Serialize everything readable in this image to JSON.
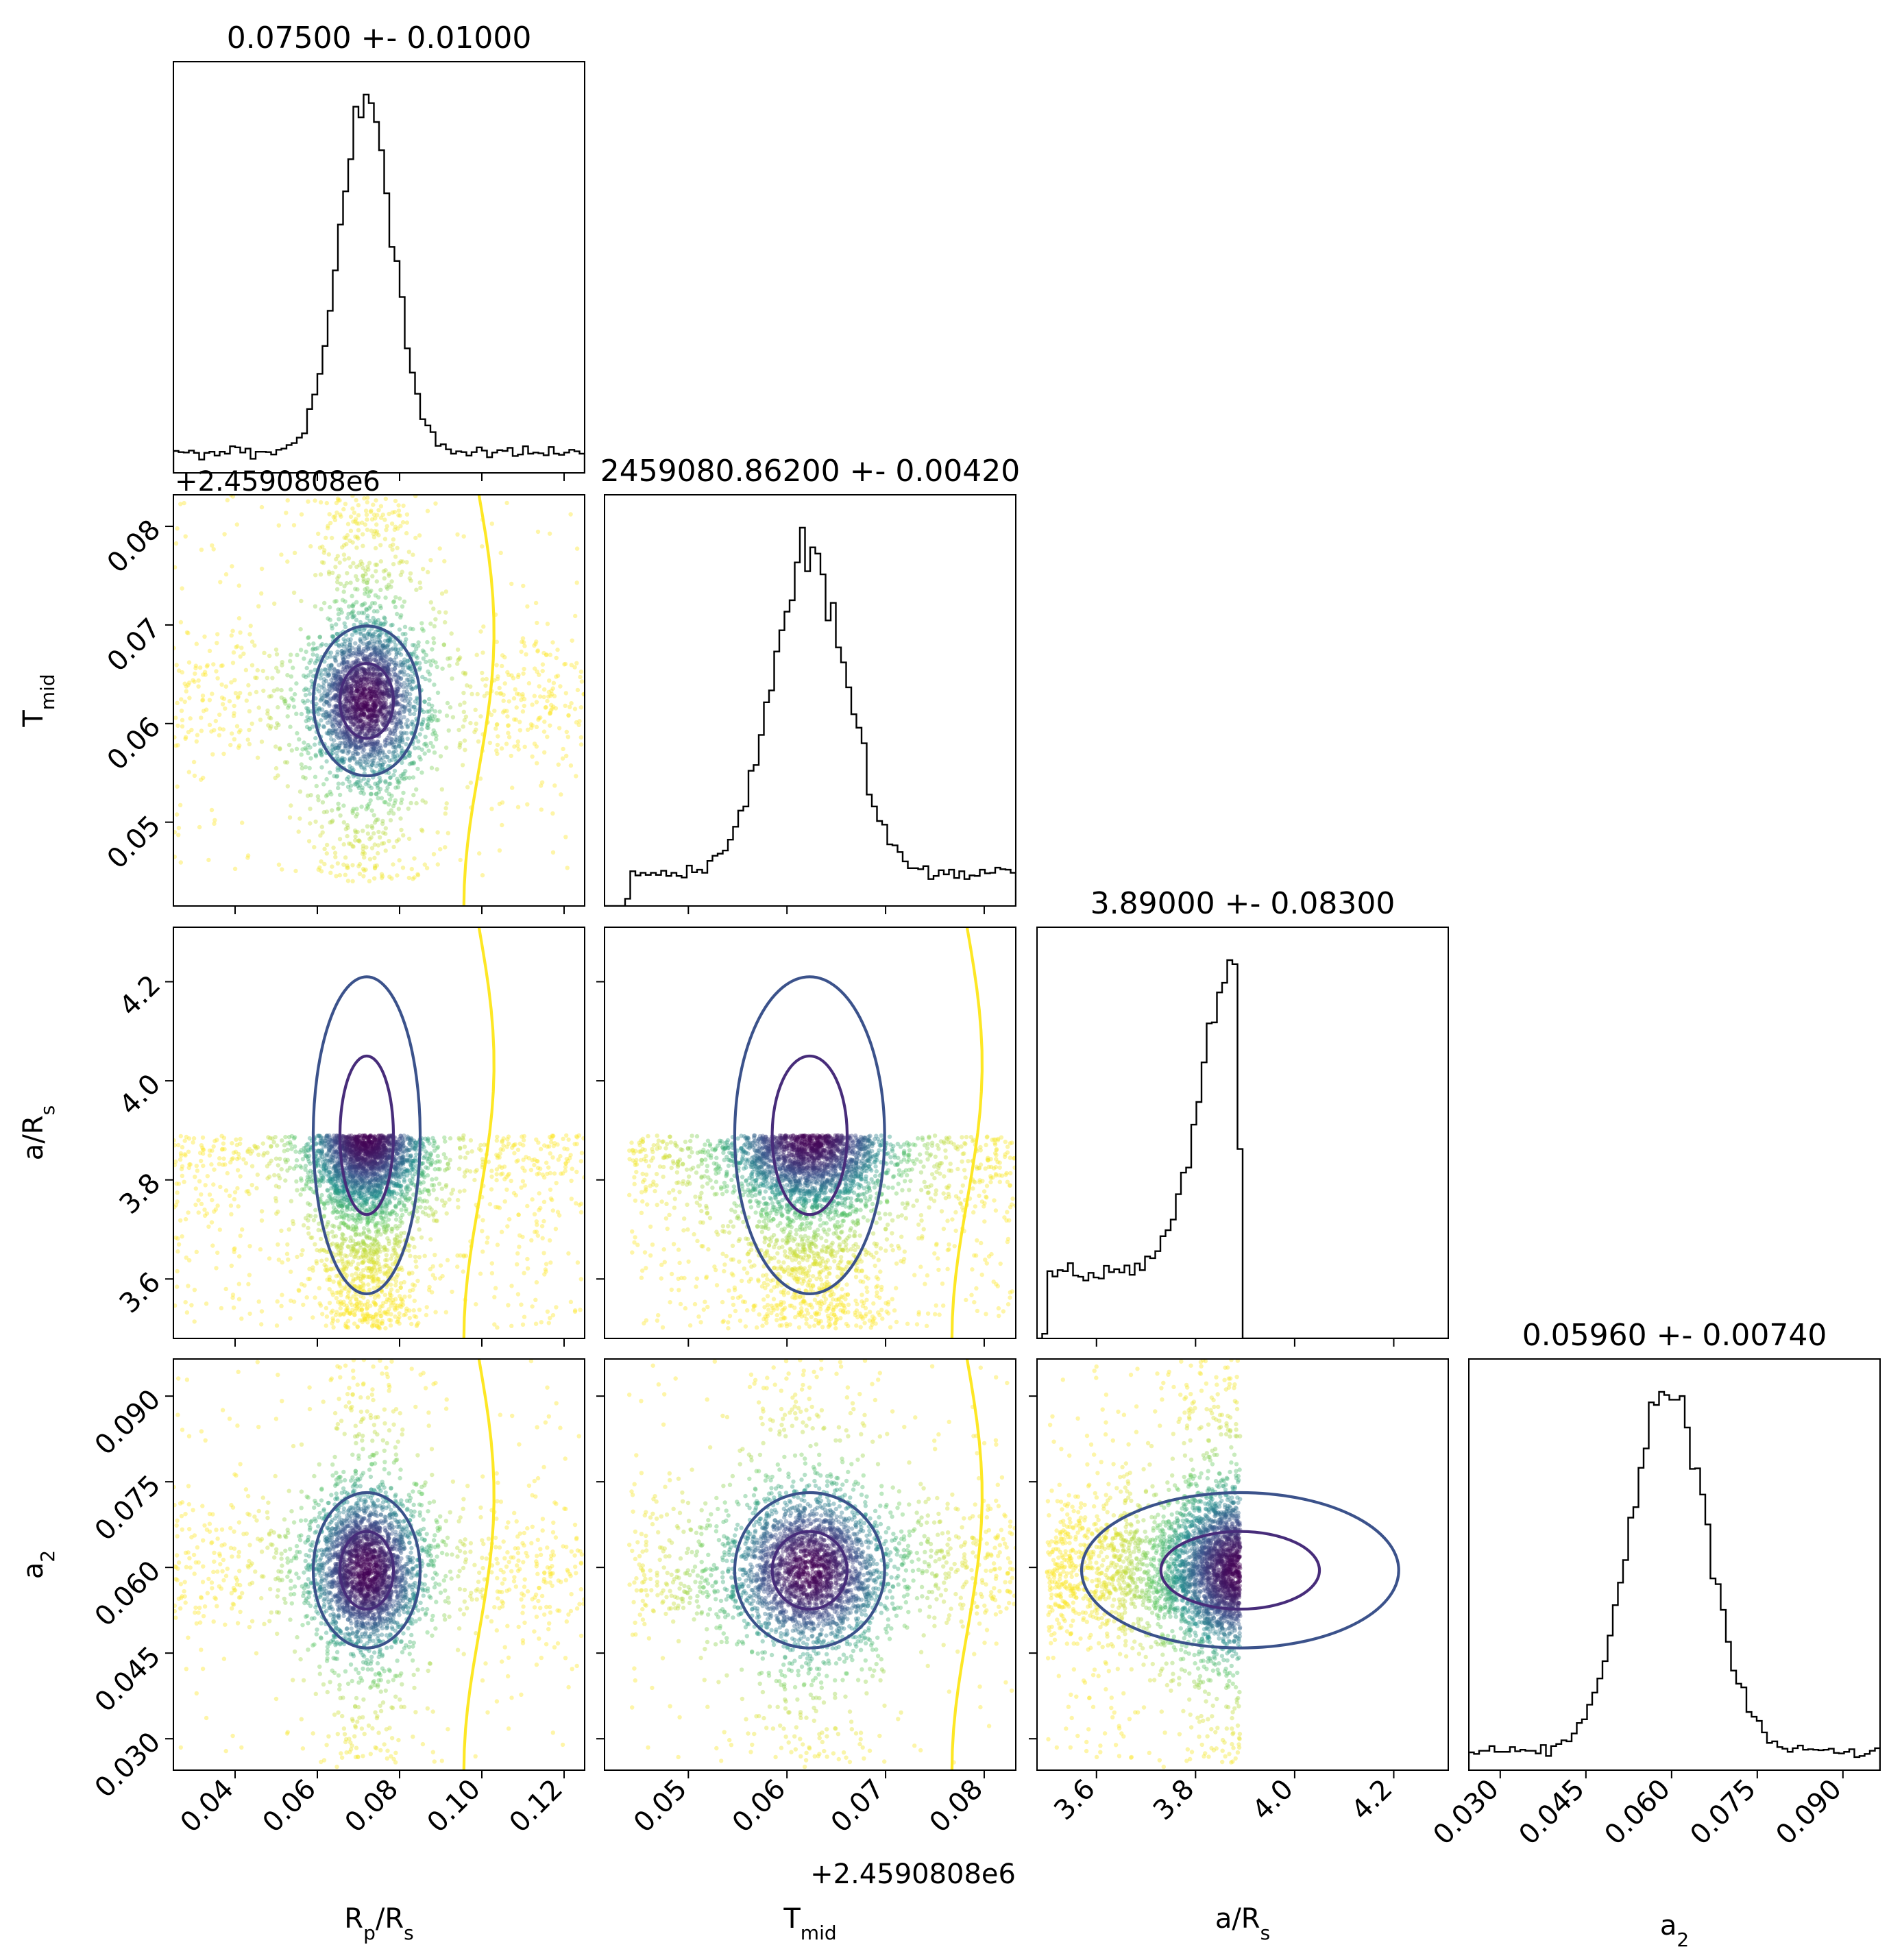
{
  "chart_data": {
    "type": "scatter",
    "subtype": "corner",
    "parameters": [
      {
        "key": "rp",
        "label_main": "R",
        "label_sub": "p",
        "label_tail": "/R",
        "label_tail_sub": "s",
        "range": [
          0.025,
          0.125
        ],
        "ticks": [
          0.04,
          0.06,
          0.08,
          0.1,
          0.12
        ],
        "tick_labels": [
          "0.04",
          "0.06",
          "0.08",
          "0.10",
          "0.12"
        ],
        "title": "0.07500 +- 0.01000",
        "offset_label": ""
      },
      {
        "key": "tmid",
        "label_main": "T",
        "label_sub": "mid",
        "label_tail": "",
        "label_tail_sub": "",
        "range": [
          0.0415,
          0.0832
        ],
        "ticks": [
          0.05,
          0.06,
          0.07,
          0.08
        ],
        "tick_labels": [
          "0.05",
          "0.06",
          "0.07",
          "0.08"
        ],
        "title": "2459080.86200 +- 0.00420",
        "offset_label": "+2.4590808e6"
      },
      {
        "key": "ars",
        "label_main": "a/R",
        "label_sub": "s",
        "label_tail": "",
        "label_tail_sub": "",
        "range": [
          3.48,
          4.31
        ],
        "ticks": [
          3.6,
          3.8,
          4.0,
          4.2
        ],
        "tick_labels": [
          "3.6",
          "3.8",
          "4.0",
          "4.2"
        ],
        "title": "3.89000 +- 0.08300",
        "offset_label": ""
      },
      {
        "key": "a2",
        "label_main": "a",
        "label_sub": "2",
        "label_tail": "",
        "label_tail_sub": "",
        "range": [
          0.0245,
          0.0965
        ],
        "ticks": [
          0.03,
          0.045,
          0.06,
          0.075,
          0.09
        ],
        "tick_labels": [
          "0.030",
          "0.045",
          "0.060",
          "0.075",
          "0.090"
        ],
        "title": "0.05960 +- 0.00740",
        "offset_label": ""
      }
    ],
    "posterior": {
      "rp": {
        "center": 0.072,
        "core_sigma": 0.0065,
        "tail_fraction": 0.26,
        "tail_range": [
          0.025,
          0.125
        ]
      },
      "tmid": {
        "center": 0.0623,
        "core_sigma": 0.0038,
        "tail_fraction": 0.3,
        "tail_range": [
          0.044,
          0.0832
        ]
      },
      "ars": {
        "peak": 3.89,
        "lower_bound": 3.5,
        "upper_cut": 3.89
      },
      "a2": {
        "center": 0.0595,
        "core_sigma": 0.0068,
        "tail_fraction": 0.18,
        "tail_range": [
          0.0245,
          0.0965
        ]
      }
    },
    "histogram_bins": 80,
    "contour_levels": [
      0.39,
      0.86,
      0.9999
    ],
    "colors": {
      "point_colormap": [
        "#440154",
        "#3b528b",
        "#21918c",
        "#5ec962",
        "#fde725"
      ],
      "contour_inner": "#472c7a",
      "contour_outer": "#3b528b",
      "contour_outermost": "#fde725",
      "histogram": "#000000"
    },
    "grid": false,
    "legend": "none"
  }
}
